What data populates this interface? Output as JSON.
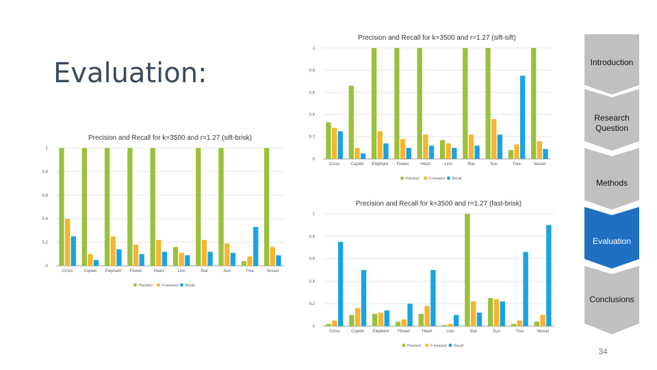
{
  "slide": {
    "title": "Evaluation:",
    "page_number": "34"
  },
  "nav": {
    "items": [
      {
        "label": "Introduction",
        "active": false
      },
      {
        "label": "Research Question",
        "active": false
      },
      {
        "label": "Methods",
        "active": false
      },
      {
        "label": "Evaluation",
        "active": true
      },
      {
        "label": "Conclusions",
        "active": false
      }
    ],
    "colors": {
      "inactive": "#c0c0c0",
      "active": "#1f6fc2"
    }
  },
  "chart_data": [
    {
      "type": "bar",
      "title": "Precision and Recall for k=3500 and r=1.27 (sift-brisk)",
      "categories": [
        "Cross",
        "Cupido",
        "Elephant",
        "Flower",
        "Heart",
        "Lion",
        "Star",
        "Sun",
        "Tree",
        "Vessel"
      ],
      "series": [
        {
          "name": "Precision",
          "color": "#9bc13c",
          "values": [
            1,
            1,
            1,
            1,
            1,
            0.16,
            1,
            1,
            0.04,
            1
          ]
        },
        {
          "name": "F-measure",
          "color": "#f2b630",
          "values": [
            0.4,
            0.1,
            0.25,
            0.18,
            0.22,
            0.11,
            0.22,
            0.19,
            0.08,
            0.16
          ]
        },
        {
          "name": "Recall",
          "color": "#1aa3e0",
          "values": [
            0.25,
            0.05,
            0.14,
            0.1,
            0.12,
            0.09,
            0.12,
            0.11,
            0.33,
            0.09
          ]
        }
      ],
      "ylim": [
        0,
        1
      ],
      "yticks": [
        "0",
        "0.2",
        "0.4",
        "0.6",
        "0.8",
        "1"
      ],
      "legend": "bottom-center"
    },
    {
      "type": "bar",
      "title": "Precision and Recall for k=3500 and r=1.27 (sift-sift)",
      "categories": [
        "Cross",
        "Cupido",
        "Elephant",
        "Flower",
        "Heart",
        "Lion",
        "Star",
        "Sun",
        "Tree",
        "Vessel"
      ],
      "series": [
        {
          "name": "Precision",
          "color": "#9bc13c",
          "values": [
            0.33,
            0.66,
            1,
            1,
            1,
            0.17,
            1,
            1,
            0.08,
            1
          ]
        },
        {
          "name": "F-measure",
          "color": "#f2b630",
          "values": [
            0.28,
            0.1,
            0.25,
            0.18,
            0.22,
            0.14,
            0.22,
            0.36,
            0.13,
            0.16
          ]
        },
        {
          "name": "Recall",
          "color": "#1aa3e0",
          "values": [
            0.25,
            0.05,
            0.14,
            0.1,
            0.12,
            0.1,
            0.12,
            0.22,
            0.75,
            0.09
          ]
        }
      ],
      "ylim": [
        0,
        1
      ],
      "yticks": [
        "0",
        "0.2",
        "0.4",
        "0.6",
        "0.8",
        "1"
      ],
      "legend": "bottom-center"
    },
    {
      "type": "bar",
      "title": "Precision and Recall for k=3500 and r=1.27 (fast-brisk)",
      "categories": [
        "Cross",
        "Cupido",
        "Elephant",
        "Flower",
        "Heart",
        "Lion",
        "Star",
        "Sun",
        "Tree",
        "Vessel"
      ],
      "series": [
        {
          "name": "Precision",
          "color": "#9bc13c",
          "values": [
            0.02,
            0.1,
            0.11,
            0.04,
            0.11,
            0.01,
            1,
            0.25,
            0.02,
            0.04
          ]
        },
        {
          "name": "F-measure",
          "color": "#f2b630",
          "values": [
            0.05,
            0.16,
            0.12,
            0.06,
            0.18,
            0.02,
            0.22,
            0.24,
            0.05,
            0.1
          ]
        },
        {
          "name": "Recall",
          "color": "#1aa3e0",
          "values": [
            0.75,
            0.5,
            0.14,
            0.2,
            0.5,
            0.1,
            0.12,
            0.22,
            0.66,
            0.9
          ]
        }
      ],
      "ylim": [
        0,
        1
      ],
      "yticks": [
        "0",
        "0.2",
        "0.4",
        "0.6",
        "0.8",
        "1"
      ],
      "legend": "bottom-center"
    }
  ]
}
